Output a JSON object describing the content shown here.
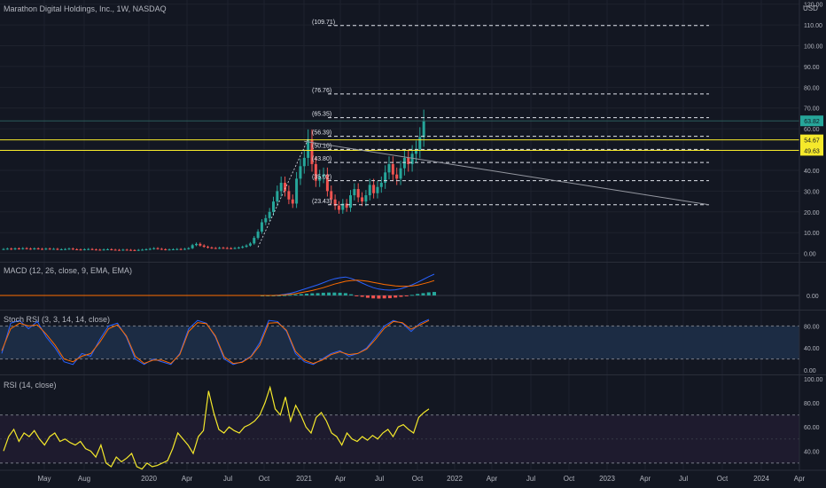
{
  "header": {
    "symbol_title": "Marathon Digital Holdings, Inc., 1W, NASDAQ",
    "currency": "USD"
  },
  "colors": {
    "background": "#131722",
    "grid": "#1e222d",
    "up": "#26a69a",
    "down": "#ef5350",
    "level_line": "#e0e3eb",
    "yellow": "#f5e92b",
    "macd": "#2962ff",
    "signal": "#ff6d00",
    "stoch_k": "#2962ff",
    "stoch_d": "#ff6d00",
    "rsi": "#f5e92b"
  },
  "chart_data": [
    {
      "type": "candlestick",
      "pane": "price",
      "title": "Marathon Digital Holdings, Inc., 1W, NASDAQ",
      "x_ticks": [
        "May",
        "Aug",
        "2020",
        "Apr",
        "Jul",
        "Oct",
        "2021",
        "Apr",
        "Jul",
        "Oct",
        "2022",
        "Apr",
        "Jul",
        "Oct",
        "2023",
        "Apr",
        "Jul",
        "Oct",
        "2024",
        "Apr"
      ],
      "y_ticks": [
        "0.00",
        "10.00",
        "20.00",
        "30.00",
        "40.00",
        "50.00",
        "60.00",
        "70.00",
        "80.00",
        "90.00",
        "100.00",
        "110.00",
        "120.00"
      ],
      "ylim": [
        -4,
        122
      ],
      "price_labels": [
        {
          "text": "63.82",
          "value": 63.82,
          "color": "#26a69a"
        },
        {
          "text": "54.67",
          "value": 54.67,
          "color": "#f5e92b"
        },
        {
          "text": "49.63",
          "value": 49.63,
          "color": "#f5e92b"
        }
      ],
      "fib_levels": [
        {
          "label": "(109.71)",
          "value": 109.71
        },
        {
          "label": "(76.76)",
          "value": 76.76
        },
        {
          "label": "(65.35)",
          "value": 65.35
        },
        {
          "label": "(56.39)",
          "value": 56.39
        },
        {
          "label": "(50.10)",
          "value": 50.1
        },
        {
          "label": "(43.80)",
          "value": 43.8
        },
        {
          "label": "(35.02)",
          "value": 35.02
        },
        {
          "label": "(23.43)",
          "value": 23.43
        }
      ],
      "horizontal_lines": [
        54.67,
        49.63
      ],
      "series": [
        {
          "name": "weekly_close",
          "values": [
            2.1,
            2.3,
            2.0,
            2.4,
            2.2,
            2.5,
            2.3,
            2.1,
            2.4,
            2.2,
            2.0,
            2.3,
            2.1,
            2.2,
            1.9,
            2.0,
            2.1,
            2.3,
            2.0,
            1.9,
            1.8,
            2.0,
            2.1,
            1.9,
            1.8,
            1.7,
            1.9,
            2.0,
            1.8,
            1.7,
            1.6,
            1.8,
            1.7,
            1.6,
            1.5,
            1.7,
            1.8,
            2.0,
            2.2,
            2.5,
            2.2,
            2.0,
            1.8,
            1.9,
            2.0,
            2.1,
            2.0,
            2.2,
            2.5,
            4.0,
            4.6,
            3.8,
            3.2,
            2.8,
            2.6,
            2.5,
            2.7,
            2.6,
            2.5,
            2.4,
            2.6,
            2.8,
            3.2,
            3.8,
            4.8,
            7.5,
            10.5,
            15,
            17,
            20,
            25,
            30,
            34,
            30,
            26,
            24,
            36,
            42,
            46,
            55,
            43,
            35,
            37,
            38,
            30,
            26,
            23,
            21,
            24,
            22,
            28,
            31,
            27,
            25,
            28,
            33,
            29,
            32,
            34,
            39,
            43,
            38,
            36,
            41,
            46,
            43,
            48,
            50,
            56,
            63.82
          ]
        }
      ],
      "trendline": {
        "from": {
          "week": 78,
          "value": 54.0
        },
        "to": {
          "week": 196,
          "value": 23.43
        }
      }
    },
    {
      "type": "line",
      "pane": "macd",
      "title": "MACD (12, 26, close, 9, EMA, EMA)",
      "y_ticks": [
        "0.00"
      ],
      "series": [
        {
          "name": "MACD",
          "values": [
            0,
            0,
            0,
            0.1,
            0.3,
            0.6,
            1.0,
            1.5,
            2.0,
            2.5,
            3.0,
            3.6,
            4.2,
            4.7,
            5.0,
            5.2,
            4.8,
            4.2,
            3.5,
            2.8,
            2.2,
            1.8,
            1.6,
            1.5,
            1.6,
            1.9,
            2.4,
            3.0,
            3.7,
            4.5,
            5.3,
            6.0
          ]
        },
        {
          "name": "Signal",
          "values": [
            0,
            0,
            0,
            0.05,
            0.15,
            0.3,
            0.5,
            0.8,
            1.1,
            1.4,
            1.8,
            2.2,
            2.7,
            3.2,
            3.6,
            4.0,
            4.2,
            4.3,
            4.2,
            4.0,
            3.7,
            3.4,
            3.1,
            2.9,
            2.7,
            2.6,
            2.6,
            2.7,
            2.9,
            3.3,
            3.7,
            4.2
          ]
        }
      ]
    },
    {
      "type": "line",
      "pane": "stoch_rsi",
      "title": "Stoch RSI (3, 3, 14, 14, close)",
      "y_ticks": [
        "80.00",
        "40.00",
        "0.00"
      ],
      "bands": [
        80,
        20
      ],
      "series": [
        {
          "name": "K",
          "values": [
            30,
            85,
            90,
            75,
            88,
            60,
            40,
            15,
            10,
            30,
            25,
            55,
            80,
            85,
            60,
            20,
            10,
            20,
            15,
            10,
            30,
            75,
            90,
            85,
            60,
            20,
            10,
            15,
            25,
            50,
            90,
            88,
            70,
            30,
            15,
            10,
            20,
            30,
            35,
            25,
            30,
            40,
            60,
            80,
            90,
            85,
            70,
            85,
            92
          ]
        },
        {
          "name": "D",
          "values": [
            35,
            75,
            85,
            80,
            82,
            65,
            45,
            20,
            15,
            25,
            30,
            50,
            75,
            82,
            62,
            25,
            12,
            18,
            18,
            12,
            28,
            70,
            86,
            84,
            62,
            24,
            12,
            14,
            24,
            45,
            85,
            86,
            72,
            34,
            18,
            12,
            18,
            28,
            33,
            28,
            30,
            38,
            56,
            76,
            88,
            86,
            74,
            82,
            90
          ]
        }
      ]
    },
    {
      "type": "line",
      "pane": "rsi",
      "title": "RSI (14, close)",
      "y_ticks": [
        "100.00",
        "80.00",
        "60.00",
        "40.00"
      ],
      "bands": [
        70,
        30
      ],
      "series": [
        {
          "name": "RSI",
          "values": [
            40,
            52,
            58,
            48,
            55,
            52,
            57,
            50,
            45,
            52,
            55,
            48,
            50,
            47,
            45,
            48,
            42,
            40,
            35,
            45,
            30,
            27,
            35,
            31,
            34,
            38,
            27,
            25,
            30,
            27,
            28,
            30,
            32,
            42,
            55,
            50,
            45,
            38,
            52,
            57,
            90,
            72,
            58,
            55,
            60,
            57,
            55,
            60,
            62,
            65,
            70,
            80,
            93,
            75,
            70,
            85,
            65,
            78,
            70,
            60,
            55,
            68,
            72,
            65,
            55,
            52,
            45,
            55,
            50,
            48,
            52,
            49,
            53,
            50,
            55,
            58,
            52,
            60,
            62,
            58,
            55,
            68,
            72,
            75
          ]
        }
      ]
    }
  ]
}
